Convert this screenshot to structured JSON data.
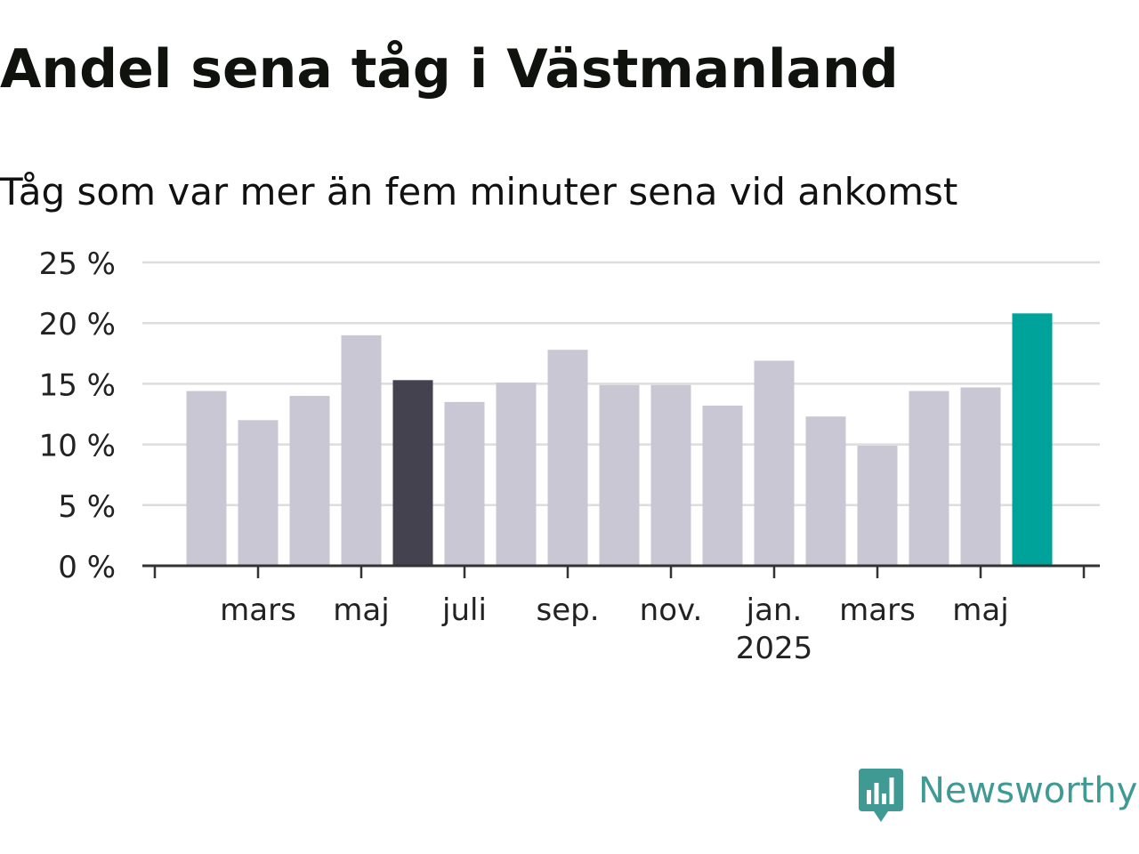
{
  "title": "Andel sena tåg i Västmanland",
  "subtitle": "Tåg som var mer än fem minuter sena vid ankomst",
  "brand": {
    "name": "Newsworthy",
    "icon": "newsworthy-bar-chart-logo-icon",
    "color": "#3e9a93"
  },
  "colors": {
    "bar_default": "#c8c7d3",
    "bar_highlight_dark": "#43424e",
    "bar_latest": "#00a39a",
    "grid": "#dddddd",
    "axis": "#333333",
    "tick_label": "#222222"
  },
  "chart_data": {
    "type": "bar",
    "title": "Andel sena tåg i Västmanland",
    "subtitle": "Tåg som var mer än fem minuter sena vid ankomst",
    "xlabel": "",
    "ylabel": "",
    "categories": [
      "2024-02",
      "2024-03",
      "2024-04",
      "2024-05",
      "2024-06",
      "2024-07",
      "2024-08",
      "2024-09",
      "2024-10",
      "2024-11",
      "2024-12",
      "2025-01",
      "2025-02",
      "2025-03",
      "2025-04",
      "2025-05",
      "2025-06"
    ],
    "values": [
      14.4,
      12.0,
      14.0,
      19.0,
      15.3,
      13.5,
      15.1,
      17.8,
      14.9,
      14.9,
      13.2,
      16.9,
      12.3,
      9.9,
      14.4,
      14.7,
      20.8
    ],
    "highlight": {
      "2024-06": "dark",
      "2025-06": "latest"
    },
    "ylim": [
      0,
      25
    ],
    "yticks": [
      {
        "value": 0,
        "label": "0 %"
      },
      {
        "value": 5,
        "label": "5 %"
      },
      {
        "value": 10,
        "label": "10 %"
      },
      {
        "value": 15,
        "label": "15 %"
      },
      {
        "value": 20,
        "label": "20 %"
      },
      {
        "value": 25,
        "label": "25 %"
      }
    ],
    "xticks": [
      {
        "category": "2024-03",
        "label": "mars"
      },
      {
        "category": "2024-05",
        "label": "maj"
      },
      {
        "category": "2024-07",
        "label": "juli"
      },
      {
        "category": "2024-09",
        "label": "sep."
      },
      {
        "category": "2024-11",
        "label": "nov."
      },
      {
        "category": "2025-01",
        "label": "jan.",
        "sublabel": "2025"
      },
      {
        "category": "2025-03",
        "label": "mars"
      },
      {
        "category": "2025-05",
        "label": "maj"
      }
    ],
    "grid": true,
    "legend": "none"
  }
}
